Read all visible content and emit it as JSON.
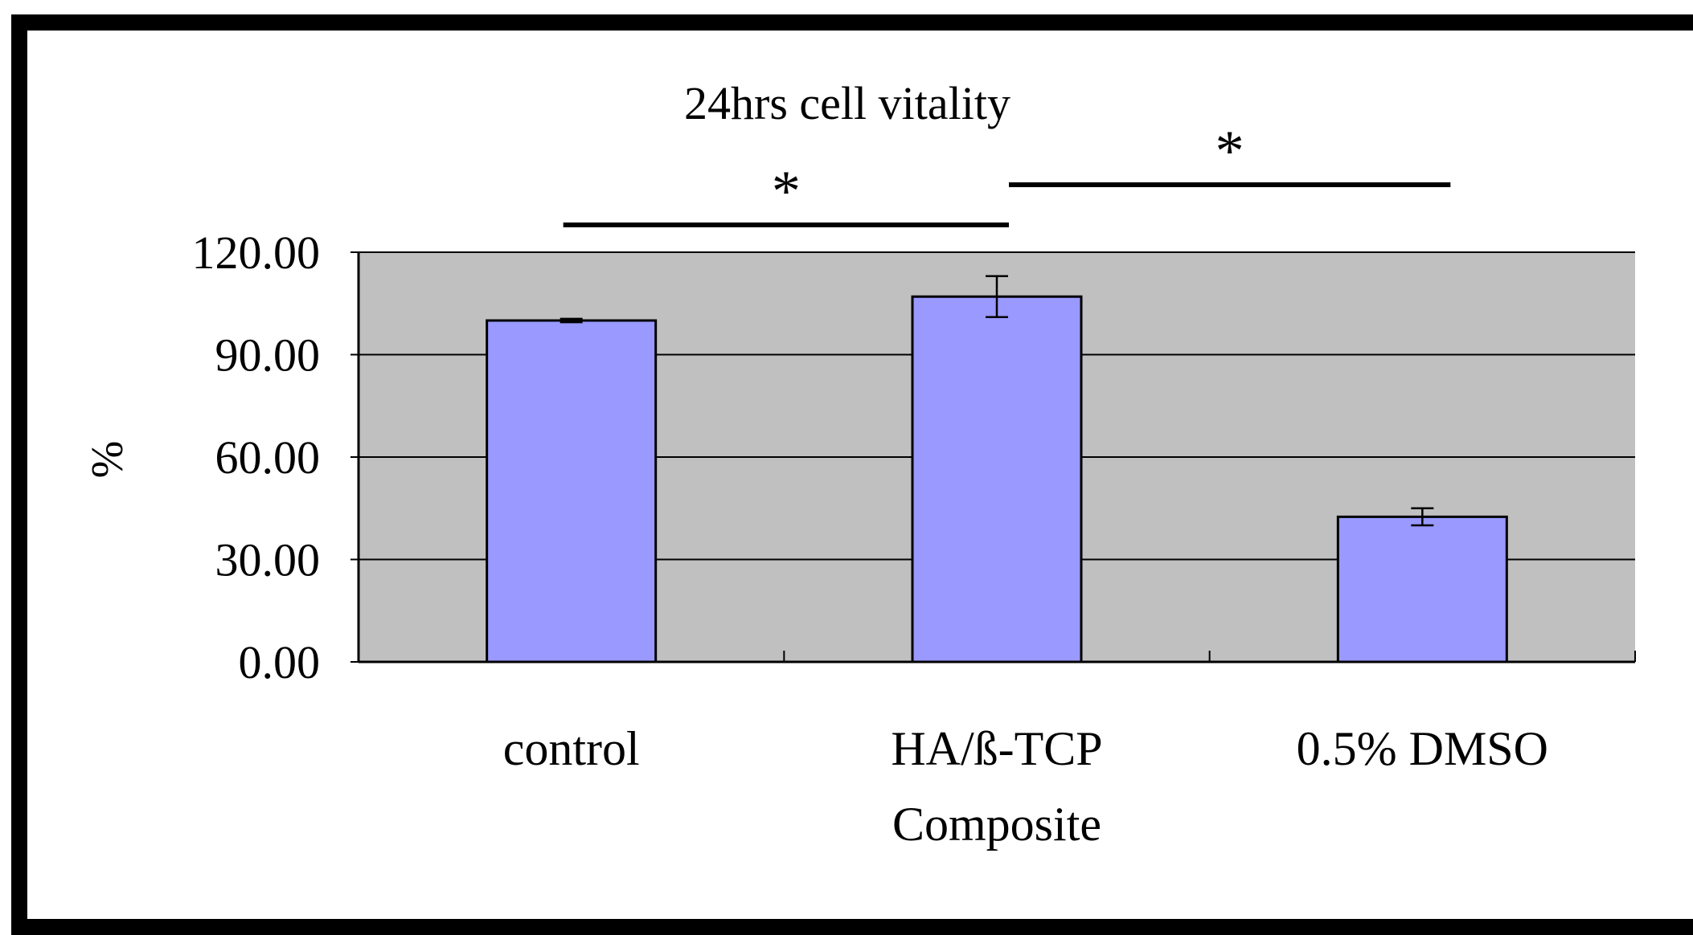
{
  "chart_data": {
    "type": "bar",
    "title": "24hrs cell vitality",
    "xlabel": "",
    "ylabel": "%",
    "categories": [
      [
        "control"
      ],
      [
        "HA/ß-TCP",
        "Composite"
      ],
      [
        "0.5% DMSO"
      ]
    ],
    "values": [
      100.0,
      107.0,
      42.5
    ],
    "errors": [
      0.5,
      6.0,
      2.5
    ],
    "ylim": [
      0,
      120
    ],
    "yticks": [
      "0.00",
      "30.00",
      "60.00",
      "90.00",
      "120.00"
    ],
    "ytick_values": [
      0,
      30,
      60,
      90,
      120
    ],
    "grid": true,
    "significance": [
      {
        "from": 0,
        "to": 1,
        "label": "*"
      },
      {
        "from": 1,
        "to": 2,
        "label": "*"
      }
    ]
  },
  "colors": {
    "bar": "#9999ff",
    "plot_background": "#c0c0c0",
    "frame": "#000000",
    "gridline": "#000000"
  }
}
